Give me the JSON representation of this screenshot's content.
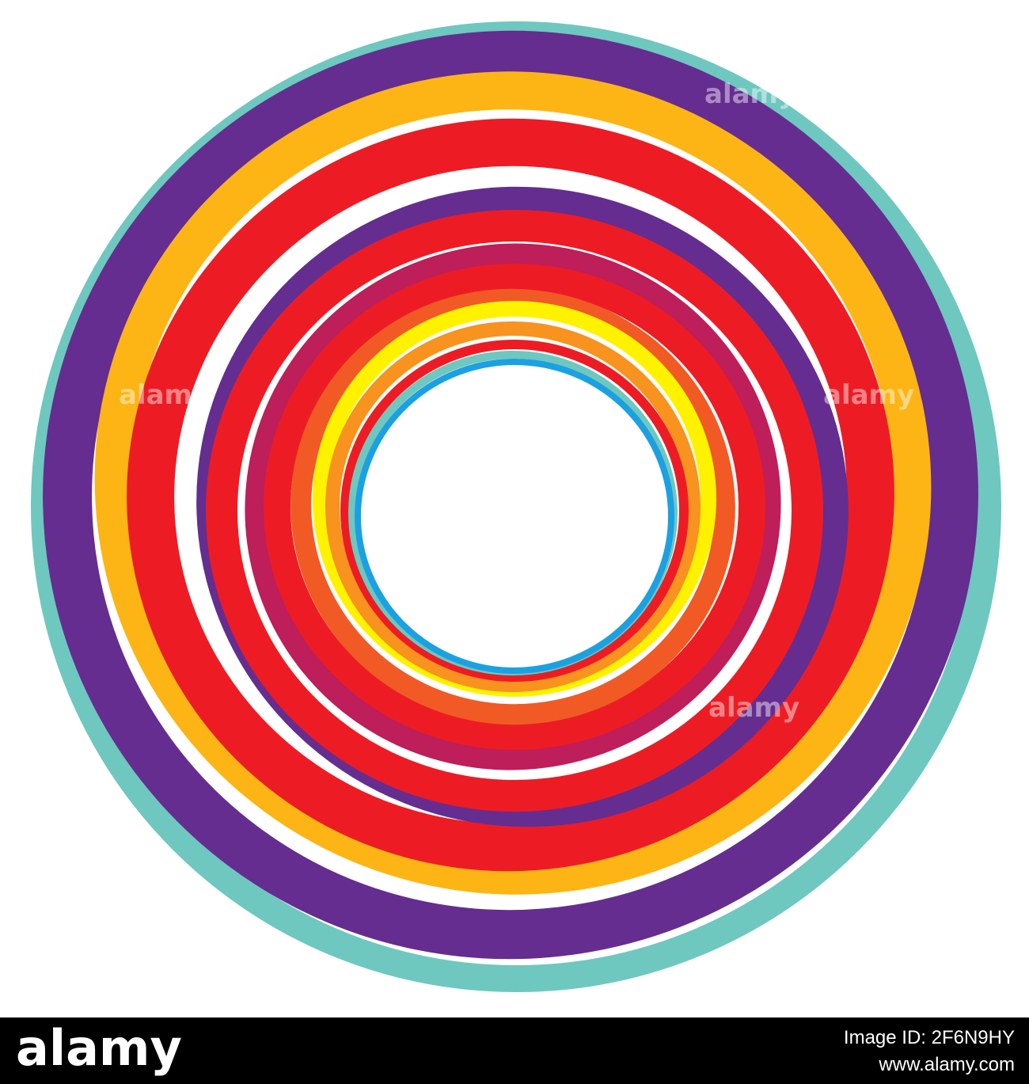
{
  "watermark": {
    "logo": "alamy",
    "image_id": "Image ID: 2F6N9HY",
    "url": "www.alamy.com"
  }
}
